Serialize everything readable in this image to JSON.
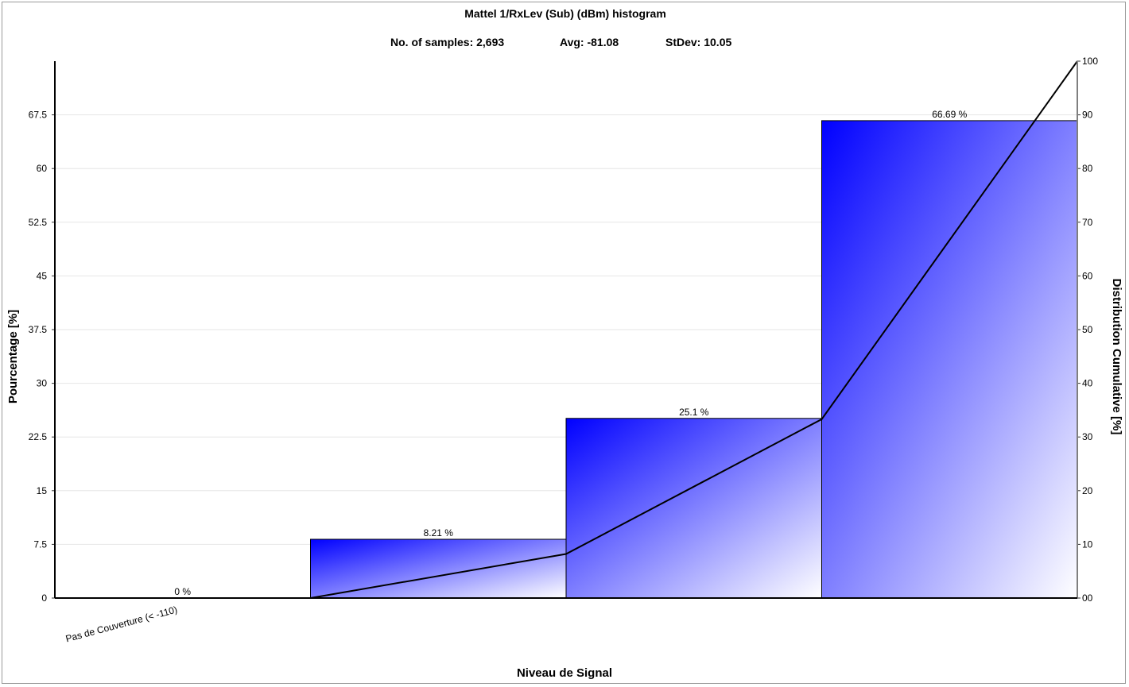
{
  "chart_data": {
    "type": "bar",
    "title": "Mattel 1/RxLev (Sub) (dBm) histogram",
    "stats": [
      {
        "label": "No. of samples:",
        "value": "2,693"
      },
      {
        "label": "Avg:",
        "value": "-81.08"
      },
      {
        "label": "StDev:",
        "value": "10.05"
      }
    ],
    "xlabel": "Niveau de Signal",
    "ylabel": "Pourcentage [%]",
    "y2label": "Distribution Cumulative [%]",
    "categories": [
      "Pas de Couverture (< -110)",
      "",
      "",
      ""
    ],
    "values": [
      0,
      8.21,
      25.1,
      66.69
    ],
    "data_labels": [
      "0 %",
      "8.21 %",
      "25.1 %",
      "66.69 %"
    ],
    "ylim": [
      0,
      75
    ],
    "yticks": [
      "0",
      "7.5",
      "15",
      "22.5",
      "30",
      "37.5",
      "45",
      "52.5",
      "60",
      "67.5"
    ],
    "y2lim": [
      0,
      100
    ],
    "y2ticks": [
      "00",
      "10",
      "20",
      "30",
      "40",
      "50",
      "60",
      "70",
      "80",
      "90",
      "100"
    ],
    "cumulative": {
      "name": "Distribution Cumulative",
      "x": [
        1,
        2,
        3,
        4
      ],
      "y": [
        0,
        8.21,
        33.31,
        100
      ]
    },
    "grid": true,
    "colors": {
      "bar_dark": "#0000ff",
      "bar_light": "#ffffff",
      "line": "#000000",
      "grid": "#e6e6e6"
    }
  }
}
